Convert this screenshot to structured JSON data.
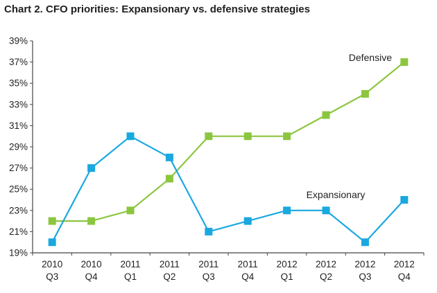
{
  "chart_data": {
    "type": "line",
    "title": "Chart 2. CFO priorities: Expansionary vs. defensive strategies",
    "categories": [
      [
        "2010",
        "Q3"
      ],
      [
        "2010",
        "Q4"
      ],
      [
        "2011",
        "Q1"
      ],
      [
        "2011",
        "Q2"
      ],
      [
        "2011",
        "Q3"
      ],
      [
        "2011",
        "Q4"
      ],
      [
        "2012",
        "Q1"
      ],
      [
        "2012",
        "Q2"
      ],
      [
        "2012",
        "Q3"
      ],
      [
        "2012",
        "Q4"
      ]
    ],
    "ylim": [
      19,
      39
    ],
    "yticks": [
      "19%",
      "21%",
      "23%",
      "25%",
      "27%",
      "29%",
      "31%",
      "33%",
      "35%",
      "37%",
      "39%"
    ],
    "grid": false,
    "legend": "inline labels",
    "series": [
      {
        "name": "Defensive",
        "color": "#8cc63f",
        "marker": "square",
        "values": [
          22,
          22,
          23,
          26,
          30,
          30,
          30,
          32,
          34,
          37
        ]
      },
      {
        "name": "Expansionary",
        "color": "#1aa8e0",
        "marker": "square",
        "values": [
          20,
          27,
          30,
          28,
          21,
          22,
          23,
          23,
          20,
          24
        ]
      }
    ]
  }
}
